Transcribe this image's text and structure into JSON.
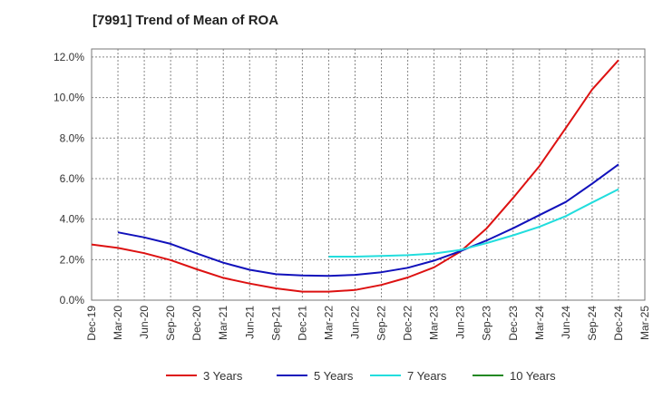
{
  "chart_data": {
    "type": "line",
    "title": "[7991]  Trend of Mean of ROA",
    "xlabel": "",
    "ylabel": "",
    "grid": true,
    "legend_position": "bottom",
    "categories": [
      "Dec-19",
      "Mar-20",
      "Jun-20",
      "Sep-20",
      "Dec-20",
      "Mar-21",
      "Jun-21",
      "Sep-21",
      "Dec-21",
      "Mar-22",
      "Jun-22",
      "Sep-22",
      "Dec-22",
      "Mar-23",
      "Jun-23",
      "Sep-23",
      "Dec-23",
      "Mar-24",
      "Jun-24",
      "Sep-24",
      "Dec-24",
      "Mar-25"
    ],
    "yticks": [
      0,
      2,
      4,
      6,
      8,
      10,
      12
    ],
    "ytick_labels": [
      "0.0%",
      "2.0%",
      "4.0%",
      "6.0%",
      "8.0%",
      "10.0%",
      "12.0%"
    ],
    "ylim": [
      0,
      12.4
    ],
    "series": [
      {
        "name": "3 Years",
        "color": "#dd1111",
        "values": [
          2.75,
          2.58,
          2.32,
          1.98,
          1.52,
          1.1,
          0.82,
          0.58,
          0.42,
          0.42,
          0.5,
          0.75,
          1.12,
          1.62,
          2.4,
          3.55,
          5.05,
          6.62,
          8.5,
          10.4,
          11.85,
          null
        ]
      },
      {
        "name": "5 Years",
        "color": "#1111bb",
        "values": [
          null,
          3.35,
          3.1,
          2.78,
          2.3,
          1.85,
          1.5,
          1.28,
          1.22,
          1.2,
          1.25,
          1.38,
          1.6,
          1.95,
          2.42,
          2.95,
          3.55,
          4.2,
          4.85,
          5.75,
          6.7,
          null
        ]
      },
      {
        "name": "7 Years",
        "color": "#22dddd",
        "values": [
          null,
          null,
          null,
          null,
          null,
          null,
          null,
          null,
          null,
          2.15,
          2.15,
          2.18,
          2.22,
          2.3,
          2.48,
          2.82,
          3.2,
          3.62,
          4.15,
          4.82,
          5.48,
          null
        ]
      },
      {
        "name": "10 Years",
        "color": "#228822",
        "values": [
          null,
          null,
          null,
          null,
          null,
          null,
          null,
          null,
          null,
          null,
          null,
          null,
          null,
          null,
          null,
          null,
          null,
          null,
          null,
          null,
          null,
          null
        ]
      }
    ]
  }
}
